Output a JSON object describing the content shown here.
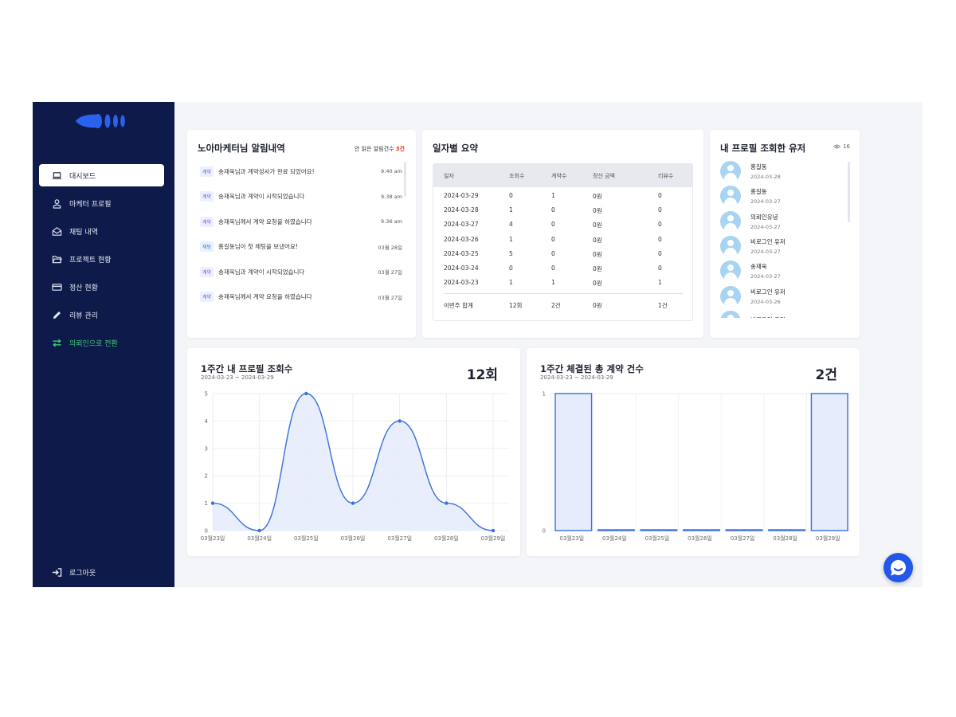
{
  "sidebar": {
    "items": [
      {
        "label": "대시보드",
        "icon": "laptop-icon"
      },
      {
        "label": "마케터 프로필",
        "icon": "user-icon"
      },
      {
        "label": "채팅 내역",
        "icon": "envelope-icon"
      },
      {
        "label": "프로젝트 현황",
        "icon": "folder-icon"
      },
      {
        "label": "정산 현황",
        "icon": "card-icon"
      },
      {
        "label": "리뷰 관리",
        "icon": "pencil-icon"
      },
      {
        "label": "의뢰인으로 전환",
        "icon": "swap-icon"
      }
    ],
    "logout": "로그아웃"
  },
  "notifications": {
    "title": "노아마케터님 알림내역",
    "unread_label": "안 읽은 알림건수",
    "unread_count": "3건",
    "items": [
      {
        "tag": "계약",
        "text": "송재욱님과 계약성사가 완료 되었어요!",
        "time": "9:40 am"
      },
      {
        "tag": "계약",
        "text": "송재욱님과 계약이 시작되었습니다",
        "time": "9:38 am"
      },
      {
        "tag": "계약",
        "text": "송재욱님께서 계약 요청을 하였습니다",
        "time": "9:36 am"
      },
      {
        "tag": "채팅",
        "text": "홍길동님이 첫 채팅을 보냈어요!",
        "time": "03월 28일"
      },
      {
        "tag": "계약",
        "text": "송재욱님과 계약이 시작되었습니다",
        "time": "03월 27일"
      },
      {
        "tag": "계약",
        "text": "송재욱님께서 계약 요청을 하였습니다",
        "time": "03월 27일"
      }
    ]
  },
  "summary": {
    "title": "일자별 요약",
    "headers": [
      "일자",
      "조회수",
      "계약수",
      "정산 금액",
      "리뷰수"
    ],
    "rows": [
      [
        "2024-03-29",
        "0",
        "1",
        "0원",
        "0"
      ],
      [
        "2024-03-28",
        "1",
        "0",
        "0원",
        "0"
      ],
      [
        "2024-03-27",
        "4",
        "0",
        "0원",
        "0"
      ],
      [
        "2024-03-26",
        "1",
        "0",
        "0원",
        "0"
      ],
      [
        "2024-03-25",
        "5",
        "0",
        "0원",
        "0"
      ],
      [
        "2024-03-24",
        "0",
        "0",
        "0원",
        "0"
      ],
      [
        "2024-03-23",
        "1",
        "1",
        "0원",
        "1"
      ]
    ],
    "total": [
      "이번주 합계",
      "12회",
      "2건",
      "0원",
      "1건"
    ]
  },
  "viewers": {
    "title": "내 프로필 조회한 유저",
    "count": "16",
    "items": [
      {
        "name": "홍길동",
        "date": "2024-03-28"
      },
      {
        "name": "홍길동",
        "date": "2024-03-27"
      },
      {
        "name": "의뢰인유녕",
        "date": "2024-03-27"
      },
      {
        "name": "비로그인 유저",
        "date": "2024-03-27"
      },
      {
        "name": "송재욱",
        "date": "2024-03-27"
      },
      {
        "name": "비로그인 유저",
        "date": "2024-03-26"
      },
      {
        "name": "비로그인 유저",
        "date": ""
      }
    ]
  },
  "chart_data": [
    {
      "type": "area",
      "title": "1주간 내 프로필 조회수",
      "subtitle": "2024-03-23 ~ 2024-03-29",
      "total": "12회",
      "categories": [
        "03월23일",
        "03월24일",
        "03월25일",
        "03월26일",
        "03월27일",
        "03월28일",
        "03월29일"
      ],
      "values": [
        1,
        0,
        5,
        1,
        4,
        1,
        0
      ],
      "ylim": [
        0,
        5
      ],
      "yticks": [
        "0",
        "1",
        "2",
        "3",
        "4",
        "5"
      ],
      "grid": true,
      "color": "#3b6fe0"
    },
    {
      "type": "bar",
      "title": "1주간 체결된 총 계약 건수",
      "subtitle": "2024-03-23 ~ 2024-03-29",
      "total": "2건",
      "categories": [
        "03월23일",
        "03월24일",
        "03월25일",
        "03월26일",
        "03월27일",
        "03월28일",
        "03월29일"
      ],
      "values": [
        1,
        0,
        0,
        0,
        0,
        0,
        1
      ],
      "ylim": [
        0,
        1
      ],
      "yticks": [
        "0",
        "1"
      ],
      "grid": true,
      "color": "#3b6fe0"
    }
  ]
}
